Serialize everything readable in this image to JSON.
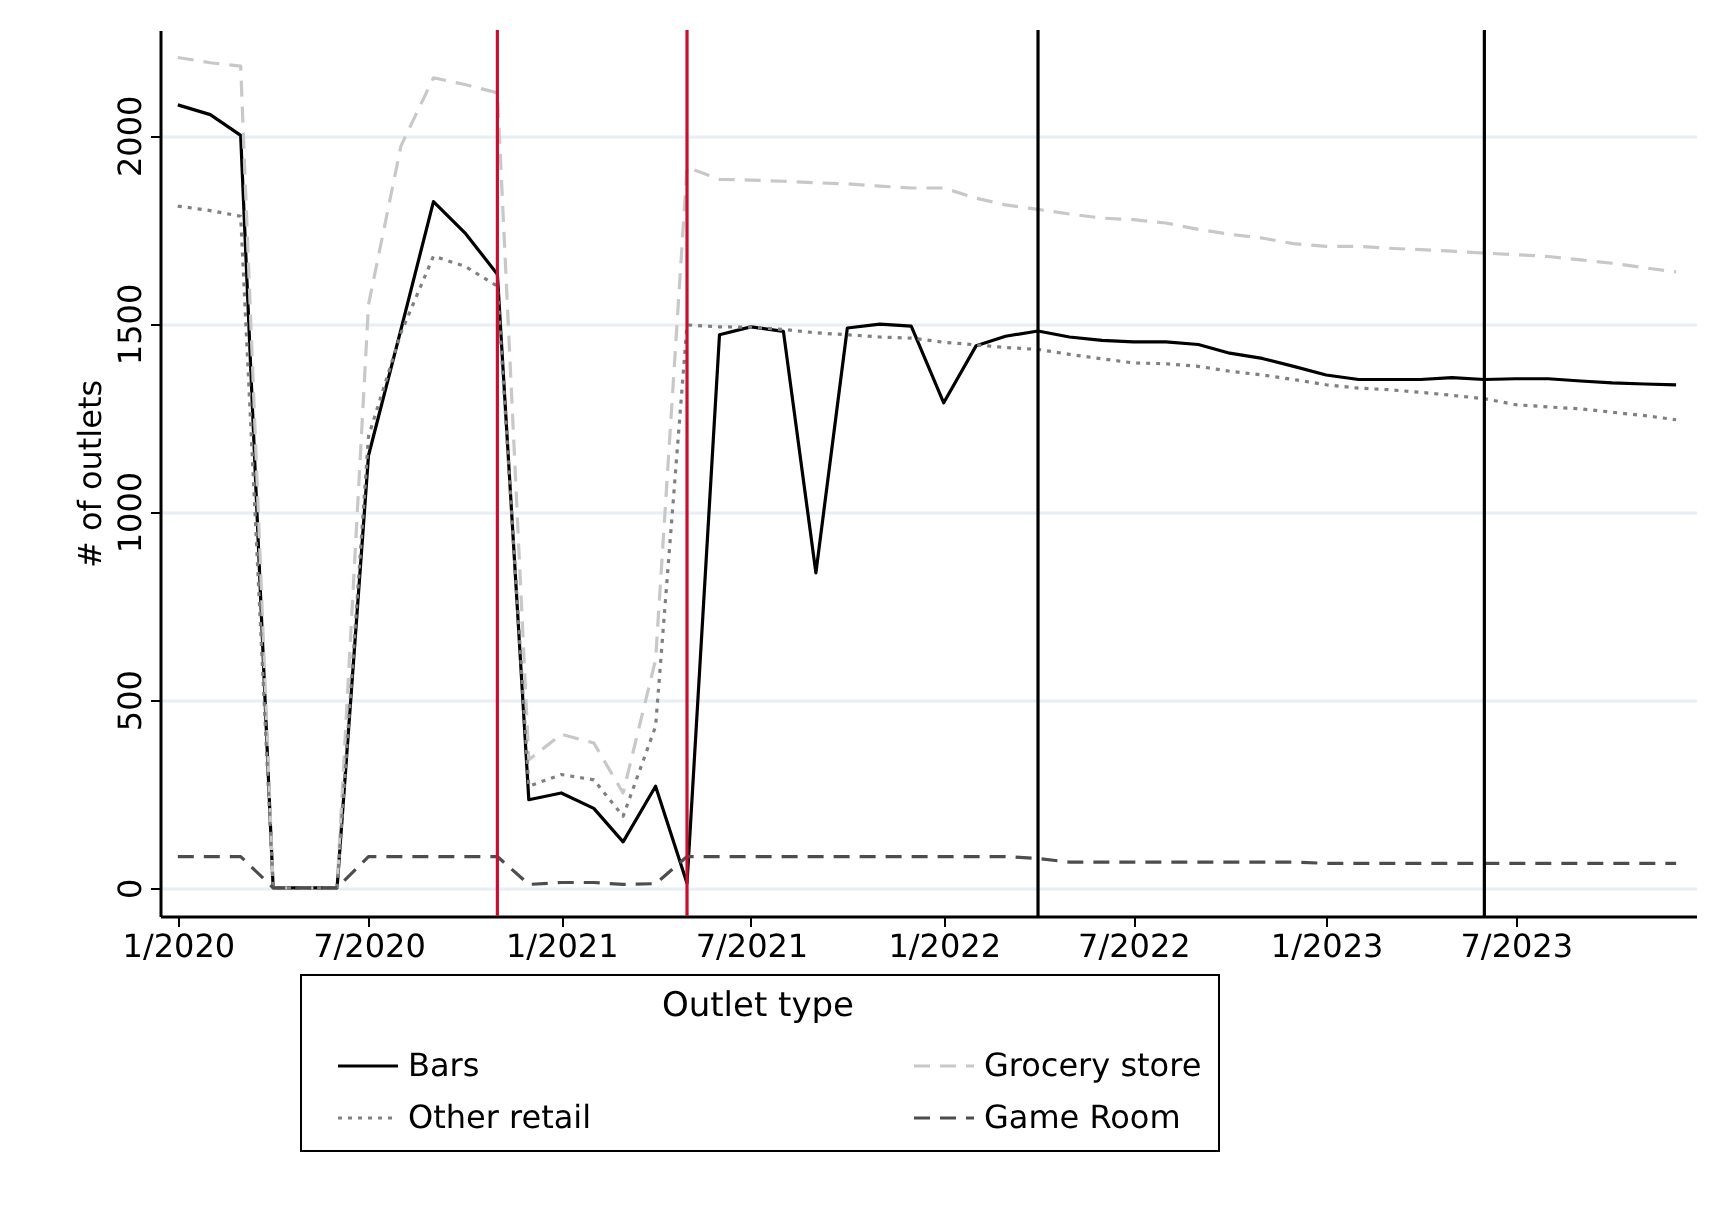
{
  "chart_data": {
    "type": "line",
    "xlabel": null,
    "ylabel": "# of outlets",
    "legend_title": "Outlet type",
    "legend": "bottom",
    "grid": "y",
    "x": [
      "2020-01",
      "2020-02",
      "2020-03",
      "2020-04",
      "2020-05",
      "2020-06",
      "2020-07",
      "2020-08",
      "2020-09",
      "2020-10",
      "2020-11",
      "2020-12",
      "2021-01",
      "2021-02",
      "2021-03",
      "2021-04",
      "2021-05",
      "2021-06",
      "2021-07",
      "2021-08",
      "2021-09",
      "2021-10",
      "2021-11",
      "2021-12",
      "2022-01",
      "2022-02",
      "2022-03",
      "2022-04",
      "2022-05",
      "2022-06",
      "2022-07",
      "2022-08",
      "2022-09",
      "2022-10",
      "2022-11",
      "2022-12",
      "2023-01",
      "2023-02",
      "2023-03",
      "2023-04",
      "2023-05",
      "2023-06",
      "2023-07",
      "2023-08",
      "2023-09",
      "2023-10",
      "2023-11",
      "2023-12"
    ],
    "series": [
      {
        "name": "Bars",
        "color": "#000000",
        "line_style": "solid",
        "values": [
          2081,
          2055,
          2000,
          0,
          0,
          0,
          1149,
          1484,
          1824,
          1741,
          1631,
          234,
          252,
          211,
          122,
          270,
          12,
          1470,
          1491,
          1479,
          837,
          1488,
          1498,
          1493,
          1289,
          1441,
          1466,
          1480,
          1464,
          1455,
          1451,
          1451,
          1444,
          1421,
          1407,
          1386,
          1363,
          1351,
          1351,
          1351,
          1356,
          1351,
          1353,
          1353,
          1347,
          1342,
          1339,
          1337
        ]
      },
      {
        "name": "Grocery store",
        "color": "#c8c8c8",
        "line_style": "dashed",
        "values": [
          2207,
          2193,
          2184,
          0,
          0,
          0,
          1550,
          1972,
          2153,
          2135,
          2113,
          340,
          408,
          385,
          252,
          606,
          1915,
          1883,
          1881,
          1878,
          1874,
          1871,
          1865,
          1860,
          1860,
          1833,
          1815,
          1803,
          1791,
          1780,
          1776,
          1767,
          1750,
          1737,
          1727,
          1712,
          1705,
          1705,
          1700,
          1696,
          1692,
          1687,
          1683,
          1678,
          1669,
          1660,
          1648,
          1637
        ]
      },
      {
        "name": "Other retail",
        "color": "#808080",
        "line_style": "dotted",
        "values": [
          1812,
          1800,
          1785,
          0,
          0,
          0,
          1200,
          1475,
          1679,
          1652,
          1599,
          270,
          301,
          287,
          190,
          429,
          1496,
          1491,
          1490,
          1484,
          1475,
          1470,
          1464,
          1461,
          1450,
          1443,
          1436,
          1431,
          1418,
          1406,
          1395,
          1393,
          1386,
          1373,
          1363,
          1351,
          1337,
          1328,
          1324,
          1317,
          1309,
          1300,
          1284,
          1278,
          1273,
          1264,
          1255,
          1244
        ]
      },
      {
        "name": "Game Room",
        "color": "#4d4d4d",
        "line_style": "dashed",
        "values": [
          83,
          83,
          83,
          0,
          0,
          0,
          83,
          83,
          83,
          83,
          83,
          9,
          14,
          14,
          9,
          11,
          83,
          83,
          83,
          83,
          83,
          83,
          83,
          83,
          83,
          83,
          83,
          78,
          68,
          68,
          68,
          68,
          68,
          68,
          68,
          68,
          65,
          65,
          65,
          65,
          65,
          65,
          65,
          65,
          65,
          65,
          65,
          65
        ]
      }
    ],
    "xlim": [
      "2019-12-15",
      "2023-12-20"
    ],
    "xticks": [
      {
        "value": "2020-01",
        "label": "1/2020"
      },
      {
        "value": "2020-07",
        "label": "7/2020"
      },
      {
        "value": "2021-01",
        "label": "1/2021"
      },
      {
        "value": "2021-07",
        "label": "7/2021"
      },
      {
        "value": "2022-01",
        "label": "1/2022"
      },
      {
        "value": "2022-07",
        "label": "7/2022"
      },
      {
        "value": "2023-01",
        "label": "1/2023"
      },
      {
        "value": "2023-07",
        "label": "7/2023"
      }
    ],
    "ylim": [
      -75,
      2280
    ],
    "yticks": [
      0,
      500,
      1000,
      1500,
      2000
    ],
    "ref_lines": [
      {
        "axis": "x",
        "value": "2020-11",
        "color": "#c8102e"
      },
      {
        "axis": "x",
        "value": "2021-05",
        "color": "#c8102e"
      },
      {
        "axis": "x",
        "value": "2022-04",
        "color": "#000000"
      },
      {
        "axis": "x",
        "value": "2023-06",
        "color": "#000000"
      }
    ]
  }
}
